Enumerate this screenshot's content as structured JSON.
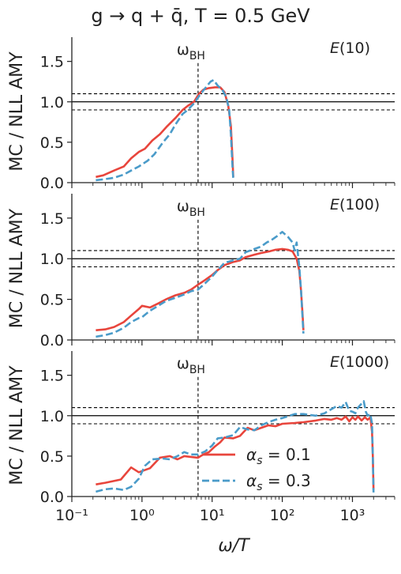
{
  "chart_data": {
    "type": "line",
    "title": "g → q + q̄, T = 0.5 GeV",
    "xlabel": "ω/T",
    "ylabel": "MC / NLL AMY",
    "xscale": "log",
    "xlim": [
      0.1,
      4000
    ],
    "ylim": [
      0,
      1.8
    ],
    "x_ticks": [
      {
        "value": 0.1,
        "label": "10⁻¹"
      },
      {
        "value": 1,
        "label": "10⁰"
      },
      {
        "value": 10,
        "label": "10¹"
      },
      {
        "value": 100,
        "label": "10²"
      },
      {
        "value": 1000,
        "label": "10³"
      }
    ],
    "y_ticks": [
      {
        "value": 0,
        "label": "0.0"
      },
      {
        "value": 0.5,
        "label": "0.5"
      },
      {
        "value": 1,
        "label": "1.0"
      },
      {
        "value": 1.5,
        "label": "1.5"
      }
    ],
    "reference_lines": {
      "solid": 1.0,
      "dashed": [
        0.9,
        1.1
      ],
      "vertical_x": 6.3
    },
    "vertical_line_label": "ω_BH",
    "legend": {
      "position": "lower-center",
      "entries": [
        {
          "label": "α_s = 0.1",
          "color": "#e8453c",
          "style": "solid"
        },
        {
          "label": "α_s = 0.3",
          "color": "#4a9bc9",
          "style": "dashed"
        }
      ]
    },
    "panels": [
      {
        "label": "E(10)",
        "series": [
          {
            "legend": "α_s = 0.1",
            "color": "#e8453c",
            "style": "solid",
            "points": [
              [
                0.22,
                0.07
              ],
              [
                0.28,
                0.09
              ],
              [
                0.4,
                0.15
              ],
              [
                0.55,
                0.2
              ],
              [
                0.7,
                0.3
              ],
              [
                0.9,
                0.38
              ],
              [
                1.1,
                0.42
              ],
              [
                1.4,
                0.52
              ],
              [
                1.8,
                0.6
              ],
              [
                2.3,
                0.7
              ],
              [
                3,
                0.8
              ],
              [
                3.8,
                0.9
              ],
              [
                4.5,
                0.95
              ],
              [
                5.5,
                1.0
              ],
              [
                6.5,
                1.1
              ],
              [
                7.5,
                1.15
              ],
              [
                9,
                1.17
              ],
              [
                11,
                1.18
              ],
              [
                13,
                1.18
              ],
              [
                15,
                1.12
              ],
              [
                17,
                0.95
              ],
              [
                18.5,
                0.7
              ],
              [
                19.5,
                0.3
              ],
              [
                20,
                0.07
              ]
            ]
          },
          {
            "legend": "α_s = 0.3",
            "color": "#4a9bc9",
            "style": "dashed",
            "points": [
              [
                0.22,
                0.03
              ],
              [
                0.28,
                0.04
              ],
              [
                0.4,
                0.06
              ],
              [
                0.55,
                0.1
              ],
              [
                0.7,
                0.15
              ],
              [
                0.9,
                0.2
              ],
              [
                1.2,
                0.27
              ],
              [
                1.5,
                0.35
              ],
              [
                2,
                0.5
              ],
              [
                2.5,
                0.6
              ],
              [
                3,
                0.72
              ],
              [
                3.8,
                0.85
              ],
              [
                4.5,
                0.9
              ],
              [
                5.5,
                0.98
              ],
              [
                6.5,
                1.07
              ],
              [
                7.5,
                1.14
              ],
              [
                8.5,
                1.2
              ],
              [
                9.5,
                1.25
              ],
              [
                10.5,
                1.27
              ],
              [
                12,
                1.2
              ],
              [
                14,
                1.15
              ],
              [
                16,
                1.05
              ],
              [
                17.5,
                0.9
              ],
              [
                18.5,
                0.6
              ],
              [
                19.5,
                0.2
              ],
              [
                20,
                0.05
              ]
            ]
          }
        ]
      },
      {
        "label": "E(100)",
        "series": [
          {
            "legend": "α_s = 0.1",
            "color": "#e8453c",
            "style": "solid",
            "points": [
              [
                0.22,
                0.12
              ],
              [
                0.3,
                0.13
              ],
              [
                0.4,
                0.16
              ],
              [
                0.55,
                0.22
              ],
              [
                0.7,
                0.3
              ],
              [
                0.9,
                0.38
              ],
              [
                1.0,
                0.42
              ],
              [
                1.3,
                0.4
              ],
              [
                1.7,
                0.45
              ],
              [
                2.2,
                0.5
              ],
              [
                3,
                0.55
              ],
              [
                4,
                0.58
              ],
              [
                5,
                0.62
              ],
              [
                6.3,
                0.68
              ],
              [
                8,
                0.74
              ],
              [
                10,
                0.8
              ],
              [
                12,
                0.86
              ],
              [
                15,
                0.92
              ],
              [
                20,
                0.96
              ],
              [
                25,
                0.98
              ],
              [
                30,
                1.02
              ],
              [
                40,
                1.05
              ],
              [
                50,
                1.07
              ],
              [
                65,
                1.09
              ],
              [
                80,
                1.11
              ],
              [
                100,
                1.12
              ],
              [
                120,
                1.11
              ],
              [
                140,
                1.09
              ],
              [
                160,
                1.0
              ],
              [
                175,
                0.85
              ],
              [
                185,
                0.6
              ],
              [
                195,
                0.3
              ],
              [
                200,
                0.12
              ]
            ]
          },
          {
            "legend": "α_s = 0.3",
            "color": "#4a9bc9",
            "style": "dashed",
            "points": [
              [
                0.22,
                0.04
              ],
              [
                0.3,
                0.06
              ],
              [
                0.4,
                0.09
              ],
              [
                0.55,
                0.15
              ],
              [
                0.7,
                0.22
              ],
              [
                0.9,
                0.27
              ],
              [
                1.0,
                0.28
              ],
              [
                1.3,
                0.36
              ],
              [
                1.7,
                0.42
              ],
              [
                2.2,
                0.48
              ],
              [
                3,
                0.52
              ],
              [
                4,
                0.56
              ],
              [
                5,
                0.6
              ],
              [
                6.3,
                0.62
              ],
              [
                8,
                0.7
              ],
              [
                10,
                0.78
              ],
              [
                12,
                0.86
              ],
              [
                15,
                0.95
              ],
              [
                20,
                0.98
              ],
              [
                25,
                1.0
              ],
              [
                30,
                1.08
              ],
              [
                40,
                1.12
              ],
              [
                50,
                1.15
              ],
              [
                60,
                1.2
              ],
              [
                70,
                1.23
              ],
              [
                85,
                1.28
              ],
              [
                100,
                1.33
              ],
              [
                120,
                1.27
              ],
              [
                140,
                1.2
              ],
              [
                150,
                1.1
              ],
              [
                160,
                1.2
              ],
              [
                175,
                0.9
              ],
              [
                185,
                0.6
              ],
              [
                195,
                0.25
              ],
              [
                200,
                0.08
              ]
            ]
          }
        ]
      },
      {
        "label": "E(1000)",
        "series": [
          {
            "legend": "α_s = 0.1",
            "color": "#e8453c",
            "style": "solid",
            "points": [
              [
                0.22,
                0.15
              ],
              [
                0.3,
                0.17
              ],
              [
                0.5,
                0.21
              ],
              [
                0.7,
                0.36
              ],
              [
                0.9,
                0.3
              ],
              [
                1.3,
                0.35
              ],
              [
                1.8,
                0.48
              ],
              [
                2.5,
                0.5
              ],
              [
                3.2,
                0.46
              ],
              [
                4,
                0.5
              ],
              [
                5,
                0.49
              ],
              [
                6.3,
                0.48
              ],
              [
                7.5,
                0.52
              ],
              [
                9,
                0.55
              ],
              [
                11,
                0.62
              ],
              [
                13,
                0.67
              ],
              [
                15,
                0.73
              ],
              [
                20,
                0.72
              ],
              [
                25,
                0.75
              ],
              [
                32,
                0.85
              ],
              [
                40,
                0.82
              ],
              [
                50,
                0.85
              ],
              [
                63,
                0.88
              ],
              [
                80,
                0.87
              ],
              [
                100,
                0.9
              ],
              [
                150,
                0.91
              ],
              [
                200,
                0.92
              ],
              [
                300,
                0.94
              ],
              [
                400,
                0.96
              ],
              [
                500,
                0.95
              ],
              [
                600,
                0.97
              ],
              [
                700,
                0.95
              ],
              [
                800,
                0.99
              ],
              [
                900,
                0.93
              ],
              [
                1000,
                0.98
              ],
              [
                1100,
                0.95
              ],
              [
                1200,
                0.99
              ],
              [
                1350,
                0.94
              ],
              [
                1500,
                0.98
              ],
              [
                1650,
                0.95
              ],
              [
                1800,
                0.98
              ],
              [
                1900,
                0.8
              ],
              [
                1950,
                0.5
              ],
              [
                2000,
                0.08
              ]
            ]
          },
          {
            "legend": "α_s = 0.3",
            "color": "#4a9bc9",
            "style": "dashed",
            "points": [
              [
                0.22,
                0.06
              ],
              [
                0.3,
                0.09
              ],
              [
                0.4,
                0.1
              ],
              [
                0.55,
                0.08
              ],
              [
                0.7,
                0.12
              ],
              [
                0.9,
                0.22
              ],
              [
                1.1,
                0.38
              ],
              [
                1.4,
                0.46
              ],
              [
                2,
                0.47
              ],
              [
                2.5,
                0.46
              ],
              [
                3.2,
                0.5
              ],
              [
                4,
                0.55
              ],
              [
                5,
                0.52
              ],
              [
                6.3,
                0.52
              ],
              [
                8,
                0.56
              ],
              [
                10,
                0.63
              ],
              [
                12,
                0.72
              ],
              [
                15,
                0.73
              ],
              [
                20,
                0.76
              ],
              [
                25,
                0.86
              ],
              [
                32,
                0.83
              ],
              [
                40,
                0.82
              ],
              [
                50,
                0.88
              ],
              [
                63,
                0.92
              ],
              [
                80,
                0.95
              ],
              [
                100,
                0.97
              ],
              [
                150,
                1.02
              ],
              [
                200,
                1.02
              ],
              [
                300,
                1.0
              ],
              [
                400,
                1.03
              ],
              [
                500,
                1.08
              ],
              [
                600,
                1.12
              ],
              [
                700,
                1.1
              ],
              [
                800,
                1.17
              ],
              [
                900,
                1.06
              ],
              [
                1000,
                1.05
              ],
              [
                1100,
                1.03
              ],
              [
                1200,
                1.1
              ],
              [
                1350,
                1.15
              ],
              [
                1450,
                1.18
              ],
              [
                1550,
                1.05
              ],
              [
                1650,
                1.0
              ],
              [
                1800,
                1.02
              ],
              [
                1900,
                0.9
              ],
              [
                1950,
                0.5
              ],
              [
                2000,
                0.05
              ]
            ]
          }
        ]
      }
    ]
  }
}
